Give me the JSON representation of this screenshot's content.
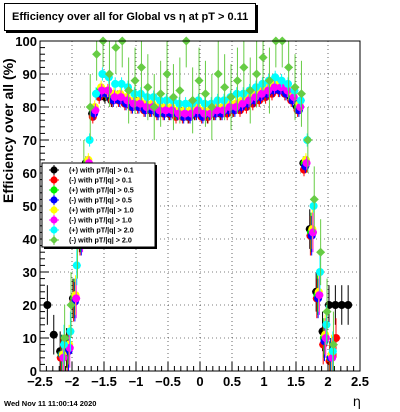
{
  "header": {
    "title": "Efficiency over all for Global vs   η at pT > 0.11"
  },
  "footer": {
    "timestamp": "Wed Nov 11 11:00:14 2020"
  },
  "chart_data": {
    "type": "scatter",
    "title": "Efficiency over all for Global vs   η at pT > 0.11",
    "xlabel": "η",
    "ylabel": "Efficiency over all (%)",
    "xlim": [
      -2.5,
      2.5
    ],
    "ylim": [
      0,
      100
    ],
    "xticks": [
      "−2.5",
      "−2",
      "−1.5",
      "−1",
      "−0.5",
      "0",
      "0.5",
      "1",
      "1.5",
      "2",
      "2.5"
    ],
    "yticks": [
      "0",
      "10",
      "20",
      "30",
      "40",
      "50",
      "60",
      "70",
      "80",
      "90",
      "100"
    ],
    "grid": true,
    "legend_position": "left-middle",
    "x": [
      -2.35,
      -2.25,
      -2.15,
      -2.05,
      -1.95,
      -1.85,
      -1.75,
      -1.65,
      -1.55,
      -1.45,
      -1.35,
      -1.25,
      -1.15,
      -1.05,
      -0.95,
      -0.85,
      -0.75,
      -0.65,
      -0.55,
      -0.45,
      -0.35,
      -0.25,
      -0.15,
      -0.05,
      0.05,
      0.15,
      0.25,
      0.35,
      0.45,
      0.55,
      0.65,
      0.75,
      0.85,
      0.95,
      1.05,
      1.15,
      1.25,
      1.35,
      1.45,
      1.55,
      1.65,
      1.75,
      1.85,
      1.95,
      2.05,
      2.15,
      2.25,
      2.35
    ],
    "series": [
      {
        "name": "(+) with pT/|q| > 0.1",
        "color": "#000000",
        "marker": "circle",
        "offset": -0.035,
        "values": [
          20,
          11,
          6,
          7,
          22,
          42,
          63,
          78,
          84,
          83,
          82,
          83,
          82,
          81,
          81,
          80,
          79,
          79,
          79,
          78,
          78,
          78,
          77,
          78,
          78,
          77,
          78,
          78,
          79,
          79,
          80,
          81,
          82,
          83,
          84,
          85,
          86,
          85,
          83,
          80,
          63,
          43,
          24,
          12,
          20,
          20,
          20,
          20
        ]
      },
      {
        "name": "(-) with pT/|q| > 0.1",
        "color": "#ff0000",
        "marker": "circle",
        "offset": -0.025,
        "values": [
          null,
          null,
          4,
          6,
          21,
          41,
          61,
          77,
          83,
          84,
          82,
          82,
          81,
          80,
          80,
          79,
          79,
          78,
          78,
          78,
          77,
          77,
          77,
          78,
          77,
          77,
          78,
          78,
          78,
          79,
          79,
          80,
          81,
          82,
          83,
          84,
          85,
          84,
          82,
          79,
          61,
          41,
          22,
          8,
          3,
          10,
          null,
          null
        ]
      },
      {
        "name": "(+) with pT/|q| > 0.5",
        "color": "#00ee00",
        "marker": "circle",
        "offset": -0.015,
        "values": [
          null,
          null,
          5,
          7,
          22,
          42,
          63,
          79,
          85,
          84,
          83,
          83,
          82,
          81,
          81,
          80,
          80,
          79,
          79,
          79,
          78,
          78,
          78,
          79,
          78,
          78,
          79,
          79,
          80,
          80,
          81,
          82,
          83,
          84,
          85,
          86,
          86,
          85,
          83,
          80,
          63,
          42,
          23,
          10,
          4,
          null,
          null,
          null
        ]
      },
      {
        "name": "(-) with pT/|q| > 0.5",
        "color": "#0000ff",
        "marker": "circle",
        "offset": -0.005,
        "values": [
          null,
          null,
          5,
          6,
          21,
          41,
          62,
          78,
          84,
          84,
          82,
          82,
          81,
          80,
          80,
          79,
          79,
          78,
          78,
          78,
          78,
          77,
          77,
          78,
          77,
          78,
          78,
          78,
          79,
          79,
          80,
          81,
          82,
          83,
          84,
          85,
          85,
          84,
          82,
          79,
          62,
          41,
          22,
          9,
          4,
          null,
          null,
          null
        ]
      },
      {
        "name": "(+) with pT/|q| > 1.0",
        "color": "#ffff00",
        "marker": "circle",
        "offset": 0.005,
        "values": [
          null,
          null,
          5,
          8,
          23,
          43,
          64,
          80,
          86,
          85,
          84,
          84,
          83,
          82,
          82,
          81,
          81,
          80,
          80,
          80,
          79,
          79,
          79,
          80,
          79,
          79,
          80,
          80,
          81,
          81,
          82,
          83,
          84,
          85,
          86,
          87,
          87,
          86,
          84,
          81,
          64,
          43,
          24,
          11,
          5,
          null,
          null,
          null
        ]
      },
      {
        "name": "(-) with pT/|q| > 1.0",
        "color": "#ff00ff",
        "marker": "circle",
        "offset": 0.015,
        "values": [
          null,
          null,
          4,
          7,
          22,
          42,
          63,
          79,
          85,
          85,
          83,
          83,
          82,
          81,
          81,
          80,
          80,
          79,
          79,
          79,
          78,
          78,
          78,
          79,
          78,
          78,
          79,
          79,
          80,
          80,
          81,
          82,
          83,
          84,
          85,
          86,
          86,
          85,
          83,
          80,
          63,
          42,
          23,
          10,
          4,
          null,
          null,
          null
        ]
      },
      {
        "name": "(+) with pT/|q| > 2.0",
        "color": "#00ffff",
        "marker": "circle",
        "offset": 0.025,
        "values": [
          null,
          null,
          8,
          12,
          32,
          50,
          70,
          84,
          90,
          89,
          87,
          87,
          86,
          84,
          84,
          83,
          83,
          82,
          82,
          82,
          81,
          81,
          81,
          82,
          81,
          81,
          82,
          82,
          83,
          84,
          84,
          85,
          86,
          87,
          88,
          89,
          88,
          87,
          85,
          82,
          70,
          50,
          30,
          14,
          6,
          null,
          null,
          null
        ]
      },
      {
        "name": "(-) with pT/|q| > 2.0",
        "color": "#66cc44",
        "marker": "diamond",
        "offset": 0.035,
        "values": [
          null,
          null,
          10,
          20,
          38,
          60,
          80,
          96,
          100,
          90,
          98,
          100,
          85,
          88,
          92,
          86,
          80,
          84,
          90,
          83,
          85,
          100,
          82,
          88,
          84,
          80,
          90,
          86,
          83,
          88,
          92,
          85,
          90,
          95,
          88,
          100,
          100,
          92,
          86,
          84,
          70,
          52,
          36,
          18,
          8,
          null,
          null,
          null
        ]
      }
    ]
  }
}
